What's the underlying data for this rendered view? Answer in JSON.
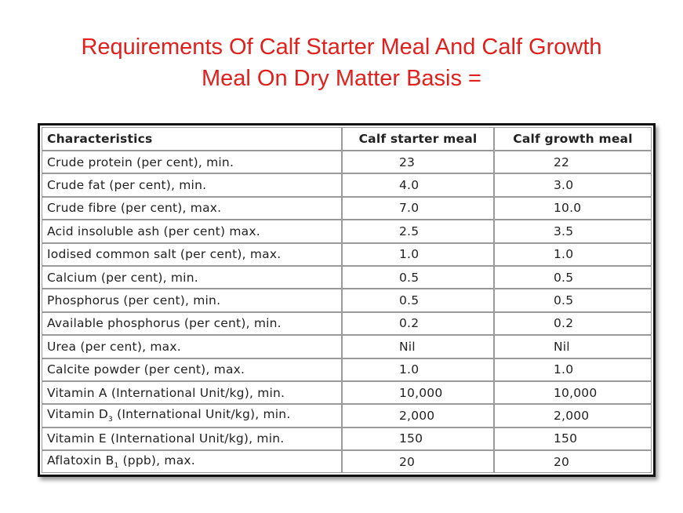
{
  "title": {
    "line1": "Requirements Of Calf Starter Meal And Calf Growth",
    "line2": "Meal On Dry Matter Basis ="
  },
  "table": {
    "header": [
      "Characteristics",
      "Calf starter meal",
      "Calf growth meal"
    ],
    "rows": [
      [
        "Crude protein (per cent), min.",
        "23",
        "22"
      ],
      [
        "Crude fat (per cent), min.",
        "4.0",
        "3.0"
      ],
      [
        "Crude fibre (per cent), max.",
        "7.0",
        "10.0"
      ],
      [
        "Acid insoluble ash (per cent) max.",
        "2.5",
        "3.5"
      ],
      [
        "Iodised common salt (per cent), max.",
        "1.0",
        "1.0"
      ],
      [
        "Calcium (per cent), min.",
        "0.5",
        "0.5"
      ],
      [
        "Phosphorus (per cent), min.",
        "0.5",
        "0.5"
      ],
      [
        "Available phosphorus (per cent), min.",
        "0.2",
        "0.2"
      ],
      [
        "Urea (per cent), max.",
        "Nil",
        "Nil"
      ],
      [
        "Calcite powder (per cent), max.",
        "1.0",
        "1.0"
      ],
      [
        "Vitamin A (International Unit/kg), min.",
        "10,000",
        "10,000"
      ],
      [
        {
          "text": "Vitamin D",
          "sub": "3",
          "rest": " (International Unit/kg), min."
        },
        "2,000",
        "2,000"
      ],
      [
        "Vitamin E (International Unit/kg), min.",
        "150",
        "150"
      ],
      [
        {
          "text": "Aflatoxin B",
          "sub": "1",
          "rest": " (ppb), max."
        },
        "20",
        "20"
      ]
    ]
  }
}
